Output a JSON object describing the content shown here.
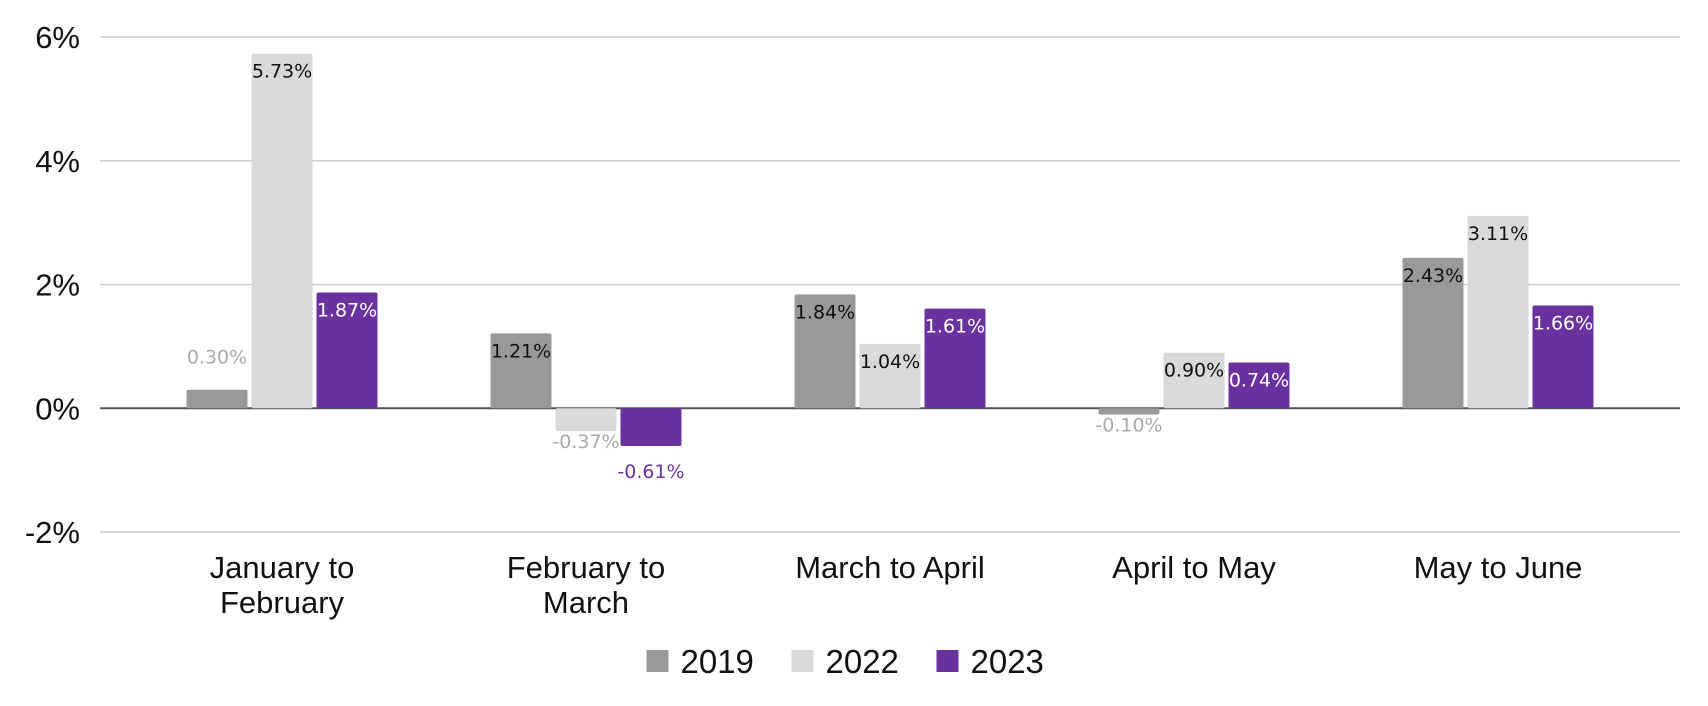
{
  "chart_data": {
    "type": "bar",
    "title": "",
    "xlabel": "",
    "ylabel": "",
    "ylim": [
      -2,
      6
    ],
    "yticks": [
      -2,
      0,
      2,
      4,
      6
    ],
    "ytick_labels": [
      "-2%",
      "0%",
      "2%",
      "4%",
      "6%"
    ],
    "grid": true,
    "legend_position": "bottom-center",
    "categories": [
      [
        "January to",
        "February"
      ],
      [
        "February to",
        "March"
      ],
      [
        "March to April"
      ],
      [
        "April to May"
      ],
      [
        "May to June"
      ]
    ],
    "series": [
      {
        "name": "2019",
        "color": "#999999",
        "values": [
          0.3,
          1.21,
          1.84,
          -0.1,
          2.43
        ],
        "labels": [
          "0.30%",
          "1.21%",
          "1.84%",
          "-0.10%",
          "2.43%"
        ]
      },
      {
        "name": "2022",
        "color": "#d9d9d9",
        "values": [
          5.73,
          -0.37,
          1.04,
          0.9,
          3.11
        ],
        "labels": [
          "5.73%",
          "-0.37%",
          "1.04%",
          "0.90%",
          "3.11%"
        ]
      },
      {
        "name": "2023",
        "color": "#6a329f",
        "values": [
          1.87,
          -0.61,
          1.61,
          0.74,
          1.66
        ],
        "labels": [
          "1.87%",
          "-0.61%",
          "1.61%",
          "0.74%",
          "1.66%"
        ]
      }
    ]
  }
}
